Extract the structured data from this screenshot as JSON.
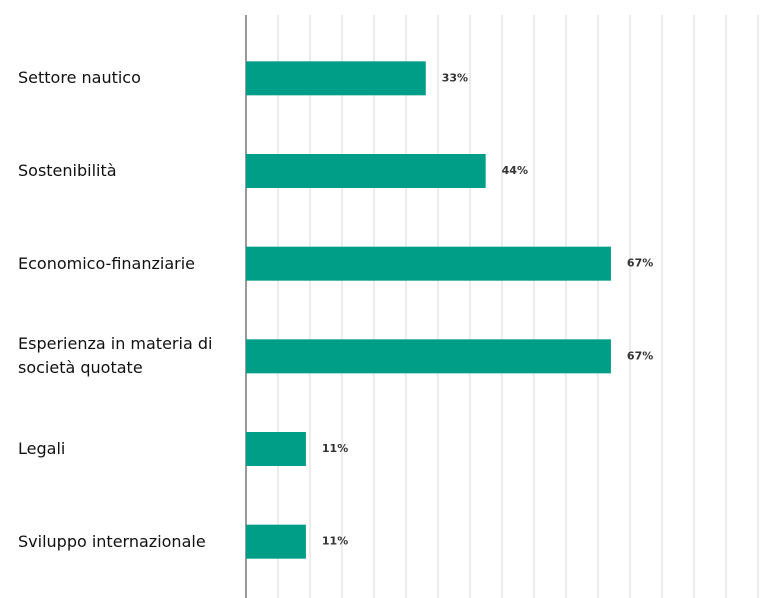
{
  "chart_data": {
    "type": "bar",
    "orientation": "horizontal",
    "categories": [
      "Settore nautico",
      "Sostenibilità",
      "Economico-finanziarie",
      "Esperienza in materia di società quotate",
      "Legali",
      "Sviluppo internazionale"
    ],
    "values": [
      33,
      44,
      67,
      67,
      11,
      11
    ],
    "value_labels": [
      "33%",
      "44%",
      "67%",
      "67%",
      "11%",
      "11%"
    ],
    "color": "#009e87",
    "xlim": [
      0,
      94
    ],
    "xticks": [
      5.875,
      11.75,
      17.625,
      23.5,
      29.375,
      35.25,
      41.125,
      47,
      52.875,
      58.75,
      64.625,
      70.5,
      76.375,
      82.25,
      88.125,
      94
    ],
    "grid": true
  }
}
